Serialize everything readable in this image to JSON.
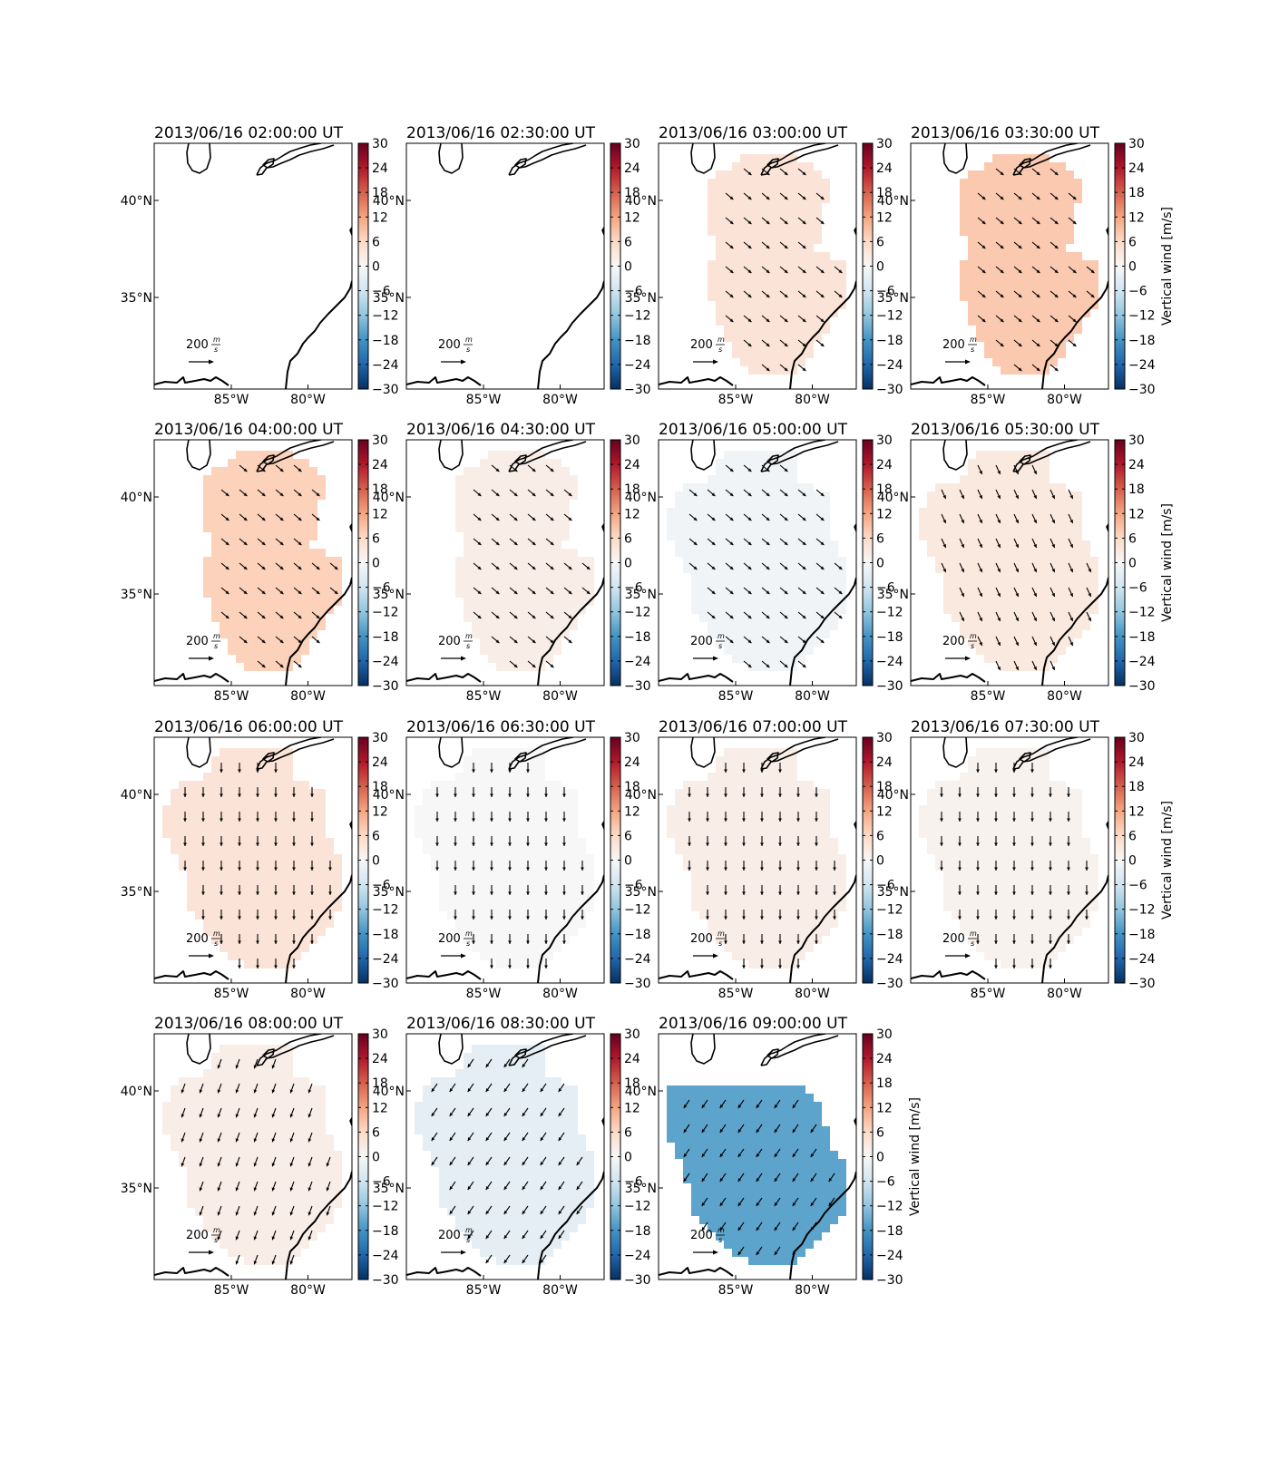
{
  "figure": {
    "colorbar": {
      "label": "Vertical wind [m/s]",
      "ticks": [
        "30",
        "24",
        "18",
        "12",
        "6",
        "0",
        "−6",
        "−12",
        "−18",
        "−24",
        "−30"
      ],
      "range": [
        -30,
        30
      ],
      "colormap": "RdBu_r",
      "colors": [
        "#053061",
        "#2166ac",
        "#4393c3",
        "#92c5de",
        "#d1e5f0",
        "#f7f7f7",
        "#fddbc7",
        "#f4a582",
        "#d6604d",
        "#b2182b",
        "#67001f"
      ]
    },
    "axes": {
      "x_ticks": [
        "85°W",
        "80°W"
      ],
      "y_ticks": [
        "40°N",
        "35°N"
      ]
    },
    "reference_arrow": {
      "label": "200",
      "unit_num": "m",
      "unit_den": "s",
      "value": 200
    },
    "coastline_color": "#000000"
  },
  "chart_data": {
    "type": "heatmap",
    "variable": "Vertical wind",
    "unit": "m/s",
    "panels": [
      {
        "title": "2013/06/16 02:00:00 UT",
        "vertical_wind": null,
        "coverage": "none",
        "arrow_direction": "none"
      },
      {
        "title": "2013/06/16 02:30:00 UT",
        "vertical_wind": null,
        "coverage": "none",
        "arrow_direction": "none"
      },
      {
        "title": "2013/06/16 03:00:00 UT",
        "vertical_wind": 4,
        "coverage": "small",
        "arrow_direction": "southeast"
      },
      {
        "title": "2013/06/16 03:30:00 UT",
        "vertical_wind": 8,
        "coverage": "small",
        "arrow_direction": "southeast"
      },
      {
        "title": "2013/06/16 04:00:00 UT",
        "vertical_wind": 7,
        "coverage": "small",
        "arrow_direction": "southeast"
      },
      {
        "title": "2013/06/16 04:30:00 UT",
        "vertical_wind": 2,
        "coverage": "small",
        "arrow_direction": "southeast"
      },
      {
        "title": "2013/06/16 05:00:00 UT",
        "vertical_wind": -1,
        "coverage": "large",
        "arrow_direction": "southeast"
      },
      {
        "title": "2013/06/16 05:30:00 UT",
        "vertical_wind": 3,
        "coverage": "large",
        "arrow_direction": "south-southeast"
      },
      {
        "title": "2013/06/16 06:00:00 UT",
        "vertical_wind": 4,
        "coverage": "large",
        "arrow_direction": "south"
      },
      {
        "title": "2013/06/16 06:30:00 UT",
        "vertical_wind": 0,
        "coverage": "large",
        "arrow_direction": "south"
      },
      {
        "title": "2013/06/16 07:00:00 UT",
        "vertical_wind": 2,
        "coverage": "large",
        "arrow_direction": "south"
      },
      {
        "title": "2013/06/16 07:30:00 UT",
        "vertical_wind": 1,
        "coverage": "large",
        "arrow_direction": "south"
      },
      {
        "title": "2013/06/16 08:00:00 UT",
        "vertical_wind": 2,
        "coverage": "large",
        "arrow_direction": "south-southwest"
      },
      {
        "title": "2013/06/16 08:30:00 UT",
        "vertical_wind": -3,
        "coverage": "large",
        "arrow_direction": "southwest"
      },
      {
        "title": "2013/06/16 09:00:00 UT",
        "vertical_wind": -16,
        "coverage": "band",
        "arrow_direction": "southwest"
      }
    ]
  }
}
